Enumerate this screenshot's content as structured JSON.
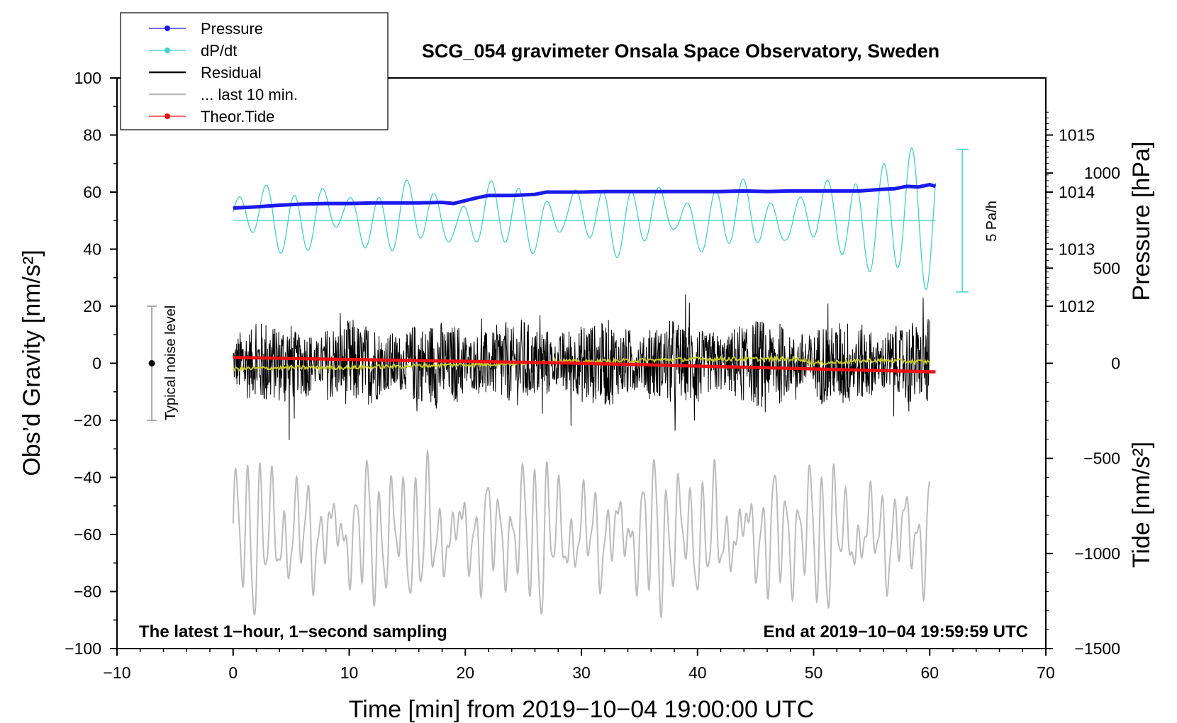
{
  "chart_data": {
    "type": "line",
    "title": "SCG_054 gravimeter Onsala Space Observatory, Sweden",
    "xlabel": "Time [min] from 2019−10−04 19:00:00 UTC",
    "ylabel_left": "Obs’d Gravity [nm/s²]",
    "ylabel_right_top": "Pressure [hPa]",
    "ylabel_right_bottom": "Tide [nm/s²]",
    "xlim": [
      -10,
      70
    ],
    "ylim": [
      -100,
      100
    ],
    "xticks": [
      "−10",
      "0",
      "10",
      "20",
      "30",
      "40",
      "50",
      "60",
      "70"
    ],
    "yticks_left": [
      "−100",
      "−80",
      "−60",
      "−40",
      "−20",
      "0",
      "20",
      "40",
      "60",
      "80",
      "100"
    ],
    "pressure_axis": {
      "ticks": [
        "1015",
        "1014",
        "1013",
        "1012"
      ],
      "values": [
        1015,
        1014,
        1013,
        1012
      ],
      "y_at": [
        80,
        60,
        40,
        20
      ]
    },
    "tide_axis": {
      "ticks": [
        "1000",
        "500",
        "0",
        "−500",
        "−1000",
        "−1500"
      ],
      "values": [
        1000,
        500,
        0,
        -500,
        -1000,
        -1500
      ],
      "ylim": [
        -1500,
        1500
      ]
    },
    "legend": [
      {
        "label": "Pressure",
        "color": "#1a1aee",
        "marker": true
      },
      {
        "label": "dP/dt",
        "color": "#40d0d0",
        "marker": true
      },
      {
        "label": "Residual",
        "color": "#000000",
        "marker": false
      },
      {
        "label": "... last 10 min.",
        "color": "#bbbbbb",
        "marker": false
      },
      {
        "label": "Theor.Tide",
        "color": "#ee1111",
        "marker": true
      }
    ],
    "series": [
      {
        "name": "Pressure",
        "color": "#1a1aee",
        "unit": "hPa",
        "x": [
          0,
          2,
          4,
          6,
          8,
          10,
          12,
          14,
          16,
          18,
          19,
          20,
          21,
          22,
          24,
          26,
          27,
          28,
          30,
          32,
          34,
          36,
          38,
          40,
          42,
          44,
          46,
          48,
          50,
          52,
          54,
          56,
          57,
          58,
          59,
          60,
          60.5
        ],
        "values": [
          1013.72,
          1013.74,
          1013.77,
          1013.79,
          1013.8,
          1013.8,
          1013.81,
          1013.81,
          1013.81,
          1013.82,
          1013.8,
          1013.85,
          1013.9,
          1013.94,
          1013.94,
          1013.96,
          1014.0,
          1014.0,
          1014.0,
          1014.01,
          1014.01,
          1014.01,
          1014.01,
          1014.01,
          1014.01,
          1014.02,
          1014.01,
          1014.02,
          1014.02,
          1014.02,
          1014.02,
          1014.05,
          1014.06,
          1014.1,
          1014.09,
          1014.13,
          1014.1
        ]
      },
      {
        "name": "dP/dt",
        "color": "#40d0d0",
        "zero_line_y": 50,
        "scale_bar_label": "5 Pa/h",
        "scale_bar_range": [
          25,
          75
        ]
      },
      {
        "name": "Residual",
        "color": "#000000",
        "x_range": [
          0,
          60
        ],
        "typical_range": [
          -25,
          30
        ]
      },
      {
        "name": "Residual smoothed",
        "color": "#c8c820",
        "x": [
          0,
          5,
          10,
          15,
          20,
          25,
          28,
          30,
          35,
          40,
          45,
          49,
          50,
          55,
          60
        ],
        "values": [
          -2,
          -1.5,
          -1.5,
          -1,
          -0.5,
          0,
          1,
          0.5,
          1,
          1.5,
          1.5,
          1.5,
          0,
          1,
          0.5
        ]
      },
      {
        "name": "... last 10 min.",
        "color": "#bbbbbb",
        "x_range": [
          0,
          60
        ],
        "center_y": -60,
        "amplitude": 25
      },
      {
        "name": "Theor.Tide",
        "color": "#ee1111",
        "unit": "nm/s²",
        "x": [
          0,
          10,
          20,
          30,
          40,
          50,
          60.5
        ],
        "values": [
          30,
          20,
          10,
          0,
          -15,
          -30,
          -45
        ]
      }
    ],
    "noise_indicator": {
      "label": "Typical noise level",
      "x": -7,
      "range": [
        -20,
        20
      ],
      "center": 0
    },
    "annotations": {
      "bottom_left": "The latest 1−hour, 1−second sampling",
      "bottom_right": "End at 2019−10−04 19:59:59 UTC"
    }
  }
}
